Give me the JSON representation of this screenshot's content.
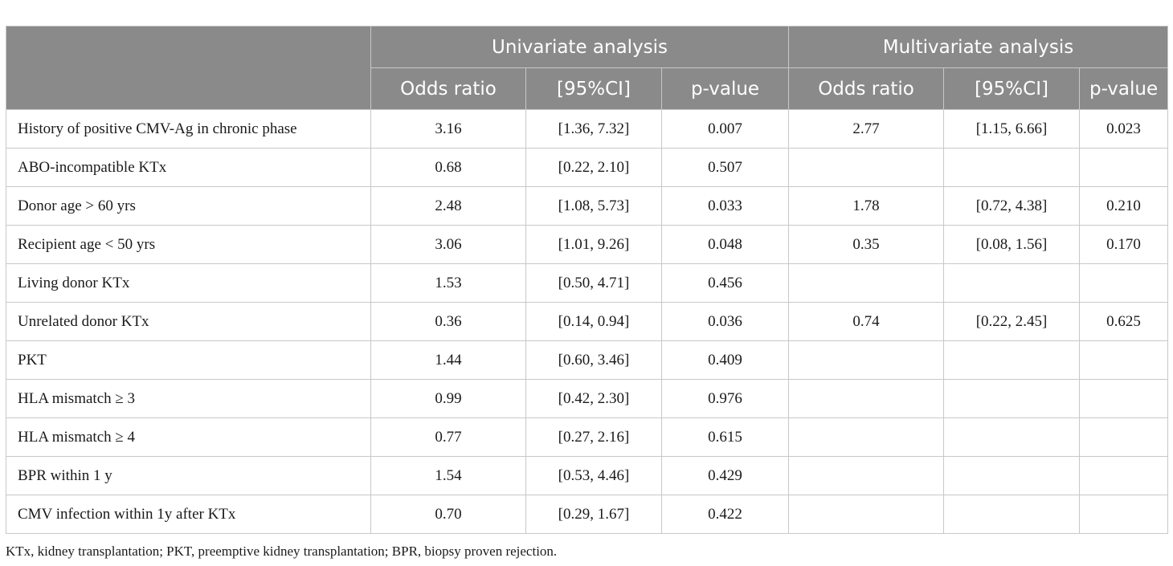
{
  "header": {
    "group_univariate": "Univariate analysis",
    "group_multivariate": "Multivariate analysis",
    "columns": [
      "Odds ratio",
      "[95%CI]",
      "p-value",
      "Odds ratio",
      "[95%CI]",
      "p-value"
    ]
  },
  "rows": [
    {
      "label": "History of positive CMV-Ag in chronic phase",
      "u_or": "3.16",
      "u_ci": "[1.36, 7.32]",
      "u_p": "0.007",
      "m_or": "2.77",
      "m_ci": "[1.15, 6.66]",
      "m_p": "0.023"
    },
    {
      "label": "ABO-incompatible KTx",
      "u_or": "0.68",
      "u_ci": "[0.22, 2.10]",
      "u_p": "0.507",
      "m_or": "",
      "m_ci": "",
      "m_p": ""
    },
    {
      "label": "Donor age > 60 yrs",
      "u_or": "2.48",
      "u_ci": "[1.08, 5.73]",
      "u_p": "0.033",
      "m_or": "1.78",
      "m_ci": "[0.72, 4.38]",
      "m_p": "0.210"
    },
    {
      "label": "Recipient age < 50 yrs",
      "u_or": "3.06",
      "u_ci": "[1.01, 9.26]",
      "u_p": "0.048",
      "m_or": "0.35",
      "m_ci": "[0.08, 1.56]",
      "m_p": "0.170"
    },
    {
      "label": "Living donor KTx",
      "u_or": "1.53",
      "u_ci": "[0.50, 4.71]",
      "u_p": "0.456",
      "m_or": "",
      "m_ci": "",
      "m_p": ""
    },
    {
      "label": "Unrelated donor KTx",
      "u_or": "0.36",
      "u_ci": "[0.14, 0.94]",
      "u_p": "0.036",
      "m_or": "0.74",
      "m_ci": "[0.22, 2.45]",
      "m_p": "0.625"
    },
    {
      "label": "PKT",
      "u_or": "1.44",
      "u_ci": "[0.60, 3.46]",
      "u_p": "0.409",
      "m_or": "",
      "m_ci": "",
      "m_p": ""
    },
    {
      "label": "HLA mismatch ≥ 3",
      "u_or": "0.99",
      "u_ci": "[0.42, 2.30]",
      "u_p": "0.976",
      "m_or": "",
      "m_ci": "",
      "m_p": ""
    },
    {
      "label": "HLA mismatch ≥ 4",
      "u_or": "0.77",
      "u_ci": "[0.27, 2.16]",
      "u_p": "0.615",
      "m_or": "",
      "m_ci": "",
      "m_p": ""
    },
    {
      "label": "BPR within 1 y",
      "u_or": "1.54",
      "u_ci": "[0.53, 4.46]",
      "u_p": "0.429",
      "m_or": "",
      "m_ci": "",
      "m_p": ""
    },
    {
      "label": "CMV infection within 1y after KTx",
      "u_or": "0.70",
      "u_ci": "[0.29, 1.67]",
      "u_p": "0.422",
      "m_or": "",
      "m_ci": "",
      "m_p": ""
    }
  ],
  "footnote": "KTx, kidney transplantation; PKT, preemptive kidney transplantation; BPR, biopsy proven rejection.",
  "colors": {
    "header_bg": "#8a8a8a",
    "header_text": "#ffffff",
    "border": "#c8c8c8"
  }
}
